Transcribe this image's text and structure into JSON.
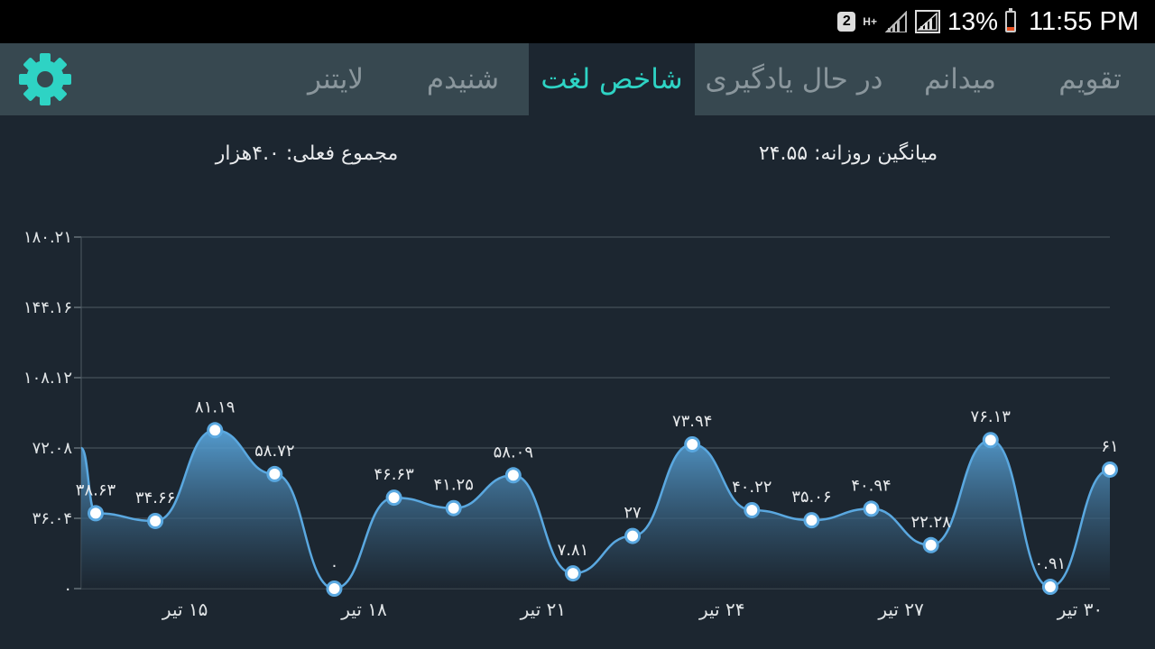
{
  "status_bar": {
    "notification_badge": "2",
    "network_type": "H+",
    "battery_percent": "13%",
    "time": "11:55 PM"
  },
  "tabs": [
    {
      "label": "تقویم",
      "active": false
    },
    {
      "label": "میدانم",
      "active": false
    },
    {
      "label": "در حال یادگیری",
      "active": false
    },
    {
      "label": "شاخص لغت",
      "active": true
    },
    {
      "label": "شنیدم",
      "active": false
    },
    {
      "label": "لایتنر",
      "active": false
    }
  ],
  "settings_icon": "gear-icon",
  "stats": {
    "daily_average": "میانگین روزانه: ۲۴.۵۵",
    "current_total": "مجموع فعلی: ۴.۰هزار"
  },
  "colors": {
    "accent": "#2ed3c4",
    "line": "#5aa8e0",
    "background": "#1c2630",
    "tabbar": "#374850"
  },
  "chart_data": {
    "type": "area",
    "x": [
      "",
      "",
      "",
      "",
      "",
      "",
      "",
      "",
      "",
      "",
      "",
      "",
      "",
      "",
      "",
      "",
      "",
      ""
    ],
    "values": [
      38.63,
      34.66,
      81.19,
      58.72,
      0,
      46.63,
      41.25,
      58.09,
      7.81,
      27,
      73.94,
      40.22,
      35.06,
      40.94,
      22.28,
      76.13,
      0.91,
      61
    ],
    "value_labels": [
      "۳۸.۶۳",
      "۳۴.۶۶",
      "۸۱.۱۹",
      "۵۸.۷۲",
      "۰",
      "۴۶.۶۳",
      "۴۱.۲۵",
      "۵۸.۰۹",
      "۷.۸۱",
      "۲۷",
      "۷۳.۹۴",
      "۴۰.۲۲",
      "۳۵.۰۶",
      "۴۰.۹۴",
      "۲۲.۲۸",
      "۷۶.۱۳",
      "۰.۹۱",
      "۶۱"
    ],
    "x_tick_labels": [
      "۱۵ تیر",
      "۱۸ تیر",
      "۲۱ تیر",
      "۲۴ تیر",
      "۲۷ تیر",
      "۳۰ تیر"
    ],
    "x_tick_indices": [
      1.5,
      4.5,
      7.5,
      10.5,
      13.5,
      16.5
    ],
    "y_ticks": [
      0,
      36.04,
      72.08,
      108.12,
      144.16,
      180.21
    ],
    "y_tick_labels": [
      "۰",
      "۳۶.۰۴",
      "۷۲.۰۸",
      "۱۰۸.۱۲",
      "۱۴۴.۱۶",
      "۱۸۰.۲۱"
    ],
    "ylim": [
      0,
      180.21
    ],
    "grid": true
  }
}
